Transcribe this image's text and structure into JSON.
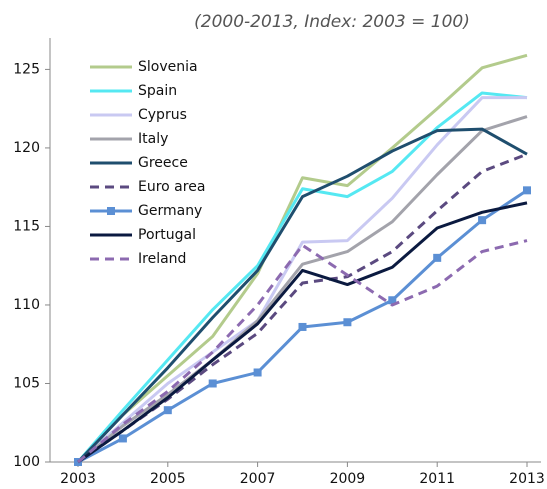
{
  "chart_data": {
    "type": "line",
    "subtitle": "(2000-2013, Index: 2003 = 100)",
    "x": [
      2003,
      2004,
      2005,
      2006,
      2007,
      2008,
      2009,
      2010,
      2011,
      2012,
      2013
    ],
    "xlim": [
      2003,
      2013
    ],
    "xticks": [
      2003,
      2005,
      2007,
      2009,
      2011,
      2013
    ],
    "ylim": [
      100,
      127
    ],
    "yticks": [
      100,
      105,
      110,
      115,
      120,
      125
    ],
    "legend": "top-left",
    "series": [
      {
        "name": "Slovenia",
        "color": "#b3cb8c",
        "values": [
          100,
          103,
          105.5,
          108,
          112,
          118.1,
          117.6,
          120,
          122.5,
          125.1,
          125.9
        ]
      },
      {
        "name": "Spain",
        "color": "#55e8f2",
        "values": [
          100,
          103.3,
          106.5,
          109.7,
          112.5,
          117.4,
          116.9,
          118.5,
          121.3,
          123.5,
          123.2
        ]
      },
      {
        "name": "Cyprus",
        "color": "#c9c9f2",
        "values": [
          100,
          102.5,
          105,
          107,
          109,
          114,
          114.1,
          116.8,
          120.2,
          123.2,
          123.2
        ]
      },
      {
        "name": "Italy",
        "color": "#a3a3ab",
        "values": [
          100,
          102.3,
          104.3,
          106.5,
          109,
          112.6,
          113.4,
          115.3,
          118.3,
          121.1,
          122
        ]
      },
      {
        "name": "Greece",
        "color": "#1f4e6e",
        "values": [
          100,
          103,
          106,
          109.2,
          112.2,
          116.9,
          118.2,
          119.8,
          121.1,
          121.2,
          119.6
        ]
      },
      {
        "name": "Euro area",
        "color": "#5b4a80",
        "dash": true,
        "values": [
          100,
          102,
          104,
          106.2,
          108.2,
          111.4,
          111.8,
          113.4,
          116,
          118.5,
          119.6
        ]
      },
      {
        "name": "Germany",
        "color": "#5b8fd4",
        "marker": "square",
        "values": [
          100,
          101.5,
          103.3,
          105,
          105.7,
          108.6,
          108.9,
          110.3,
          113,
          115.4,
          117.3
        ]
      },
      {
        "name": "Portugal",
        "color": "#0b1a40",
        "values": [
          100,
          102,
          104.1,
          106.5,
          108.8,
          112.2,
          111.3,
          112.4,
          114.9,
          115.9,
          116.5
        ]
      },
      {
        "name": "Ireland",
        "color": "#8c6ab0",
        "dash": true,
        "values": [
          100,
          102.4,
          104.5,
          107,
          110,
          113.8,
          111.9,
          110,
          111.2,
          113.4,
          114.1
        ]
      }
    ]
  }
}
